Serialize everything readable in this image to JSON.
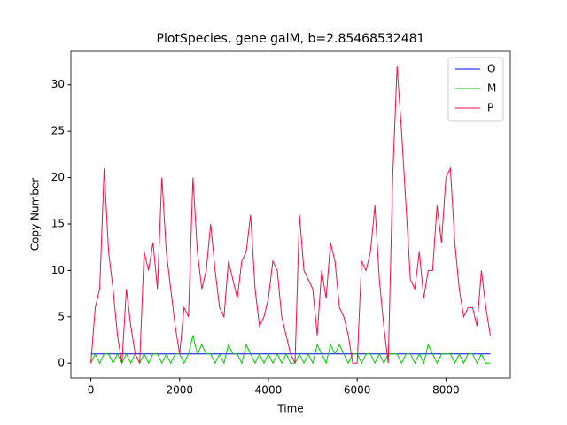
{
  "chart_data": {
    "type": "line",
    "title": "PlotSpecies, gene galM, b=2.85468532481",
    "x_label": "Time",
    "y_label": "Copy Number",
    "x": [
      0,
      100,
      200,
      300,
      400,
      500,
      600,
      700,
      800,
      900,
      1000,
      1100,
      1200,
      1300,
      1400,
      1500,
      1600,
      1700,
      1800,
      1900,
      2000,
      2100,
      2200,
      2300,
      2400,
      2500,
      2600,
      2700,
      2800,
      2900,
      3000,
      3100,
      3200,
      3300,
      3400,
      3500,
      3600,
      3700,
      3800,
      3900,
      4000,
      4100,
      4200,
      4300,
      4400,
      4500,
      4600,
      4700,
      4800,
      4900,
      5000,
      5100,
      5200,
      5300,
      5400,
      5500,
      5600,
      5700,
      5800,
      5900,
      6000,
      6100,
      6200,
      6300,
      6400,
      6500,
      6600,
      6700,
      6800,
      6900,
      7000,
      7100,
      7200,
      7300,
      7400,
      7500,
      7600,
      7700,
      7800,
      7900,
      8000,
      8100,
      8200,
      8300,
      8400,
      8500,
      8600,
      8700,
      8800,
      8900,
      9000
    ],
    "series": [
      {
        "name": "O",
        "color": "#0000ff",
        "values": [
          1,
          1,
          1,
          1,
          1,
          1,
          1,
          1,
          1,
          1,
          1,
          1,
          1,
          1,
          1,
          1,
          1,
          1,
          1,
          1,
          1,
          1,
          1,
          1,
          1,
          1,
          1,
          1,
          1,
          1,
          1,
          1,
          1,
          1,
          1,
          1,
          1,
          1,
          1,
          1,
          1,
          1,
          1,
          1,
          1,
          1,
          1,
          1,
          1,
          1,
          1,
          1,
          1,
          1,
          1,
          1,
          1,
          1,
          1,
          1,
          1,
          1,
          1,
          1,
          1,
          1,
          1,
          1,
          1,
          1,
          1,
          1,
          1,
          1,
          1,
          1,
          1,
          1,
          1,
          1,
          1,
          1,
          1,
          1,
          1,
          1,
          1,
          1,
          1,
          1,
          1
        ]
      },
      {
        "name": "M",
        "color": "#00cc00",
        "values": [
          0,
          1,
          0,
          1,
          1,
          0,
          1,
          0,
          1,
          0,
          1,
          0,
          1,
          0,
          1,
          1,
          0,
          1,
          0,
          1,
          1,
          0,
          1,
          3,
          1,
          2,
          1,
          1,
          0,
          1,
          0,
          2,
          1,
          1,
          0,
          2,
          1,
          0,
          1,
          0,
          1,
          0,
          1,
          0,
          1,
          0,
          0,
          1,
          0,
          1,
          0,
          2,
          1,
          0,
          2,
          1,
          2,
          1,
          0,
          1,
          1,
          0,
          1,
          1,
          0,
          1,
          0,
          1,
          1,
          1,
          0,
          1,
          1,
          0,
          1,
          0,
          2,
          1,
          0,
          1,
          1,
          1,
          0,
          1,
          0,
          1,
          1,
          0,
          1,
          0,
          0
        ]
      },
      {
        "name": "P",
        "color": "#ee1144",
        "values": [
          0,
          6,
          8,
          21,
          12,
          8,
          3,
          0,
          8,
          4,
          1,
          0,
          12,
          10,
          13,
          8,
          20,
          12,
          8,
          4,
          1,
          6,
          5,
          20,
          12,
          8,
          10,
          15,
          10,
          6,
          5,
          11,
          9,
          7,
          11,
          12,
          16,
          8,
          4,
          5,
          7,
          11,
          10,
          5,
          3,
          1,
          0,
          16,
          10,
          9,
          8,
          3,
          10,
          7,
          13,
          11,
          6,
          5,
          3,
          0,
          0,
          11,
          10,
          12,
          17,
          9,
          4,
          0,
          20,
          32,
          25,
          17,
          9,
          8,
          12,
          7,
          10,
          10,
          17,
          13,
          20,
          21,
          13,
          8,
          5,
          6,
          6,
          4,
          10,
          6,
          3
        ]
      }
    ],
    "xlim": [
      -450,
      9450
    ],
    "ylim": [
      -1.6,
      33.6
    ],
    "xticks": [
      0,
      2000,
      4000,
      6000,
      8000
    ],
    "yticks": [
      0,
      5,
      10,
      15,
      20,
      25,
      30
    ],
    "grid": false,
    "legend": "upper right"
  }
}
